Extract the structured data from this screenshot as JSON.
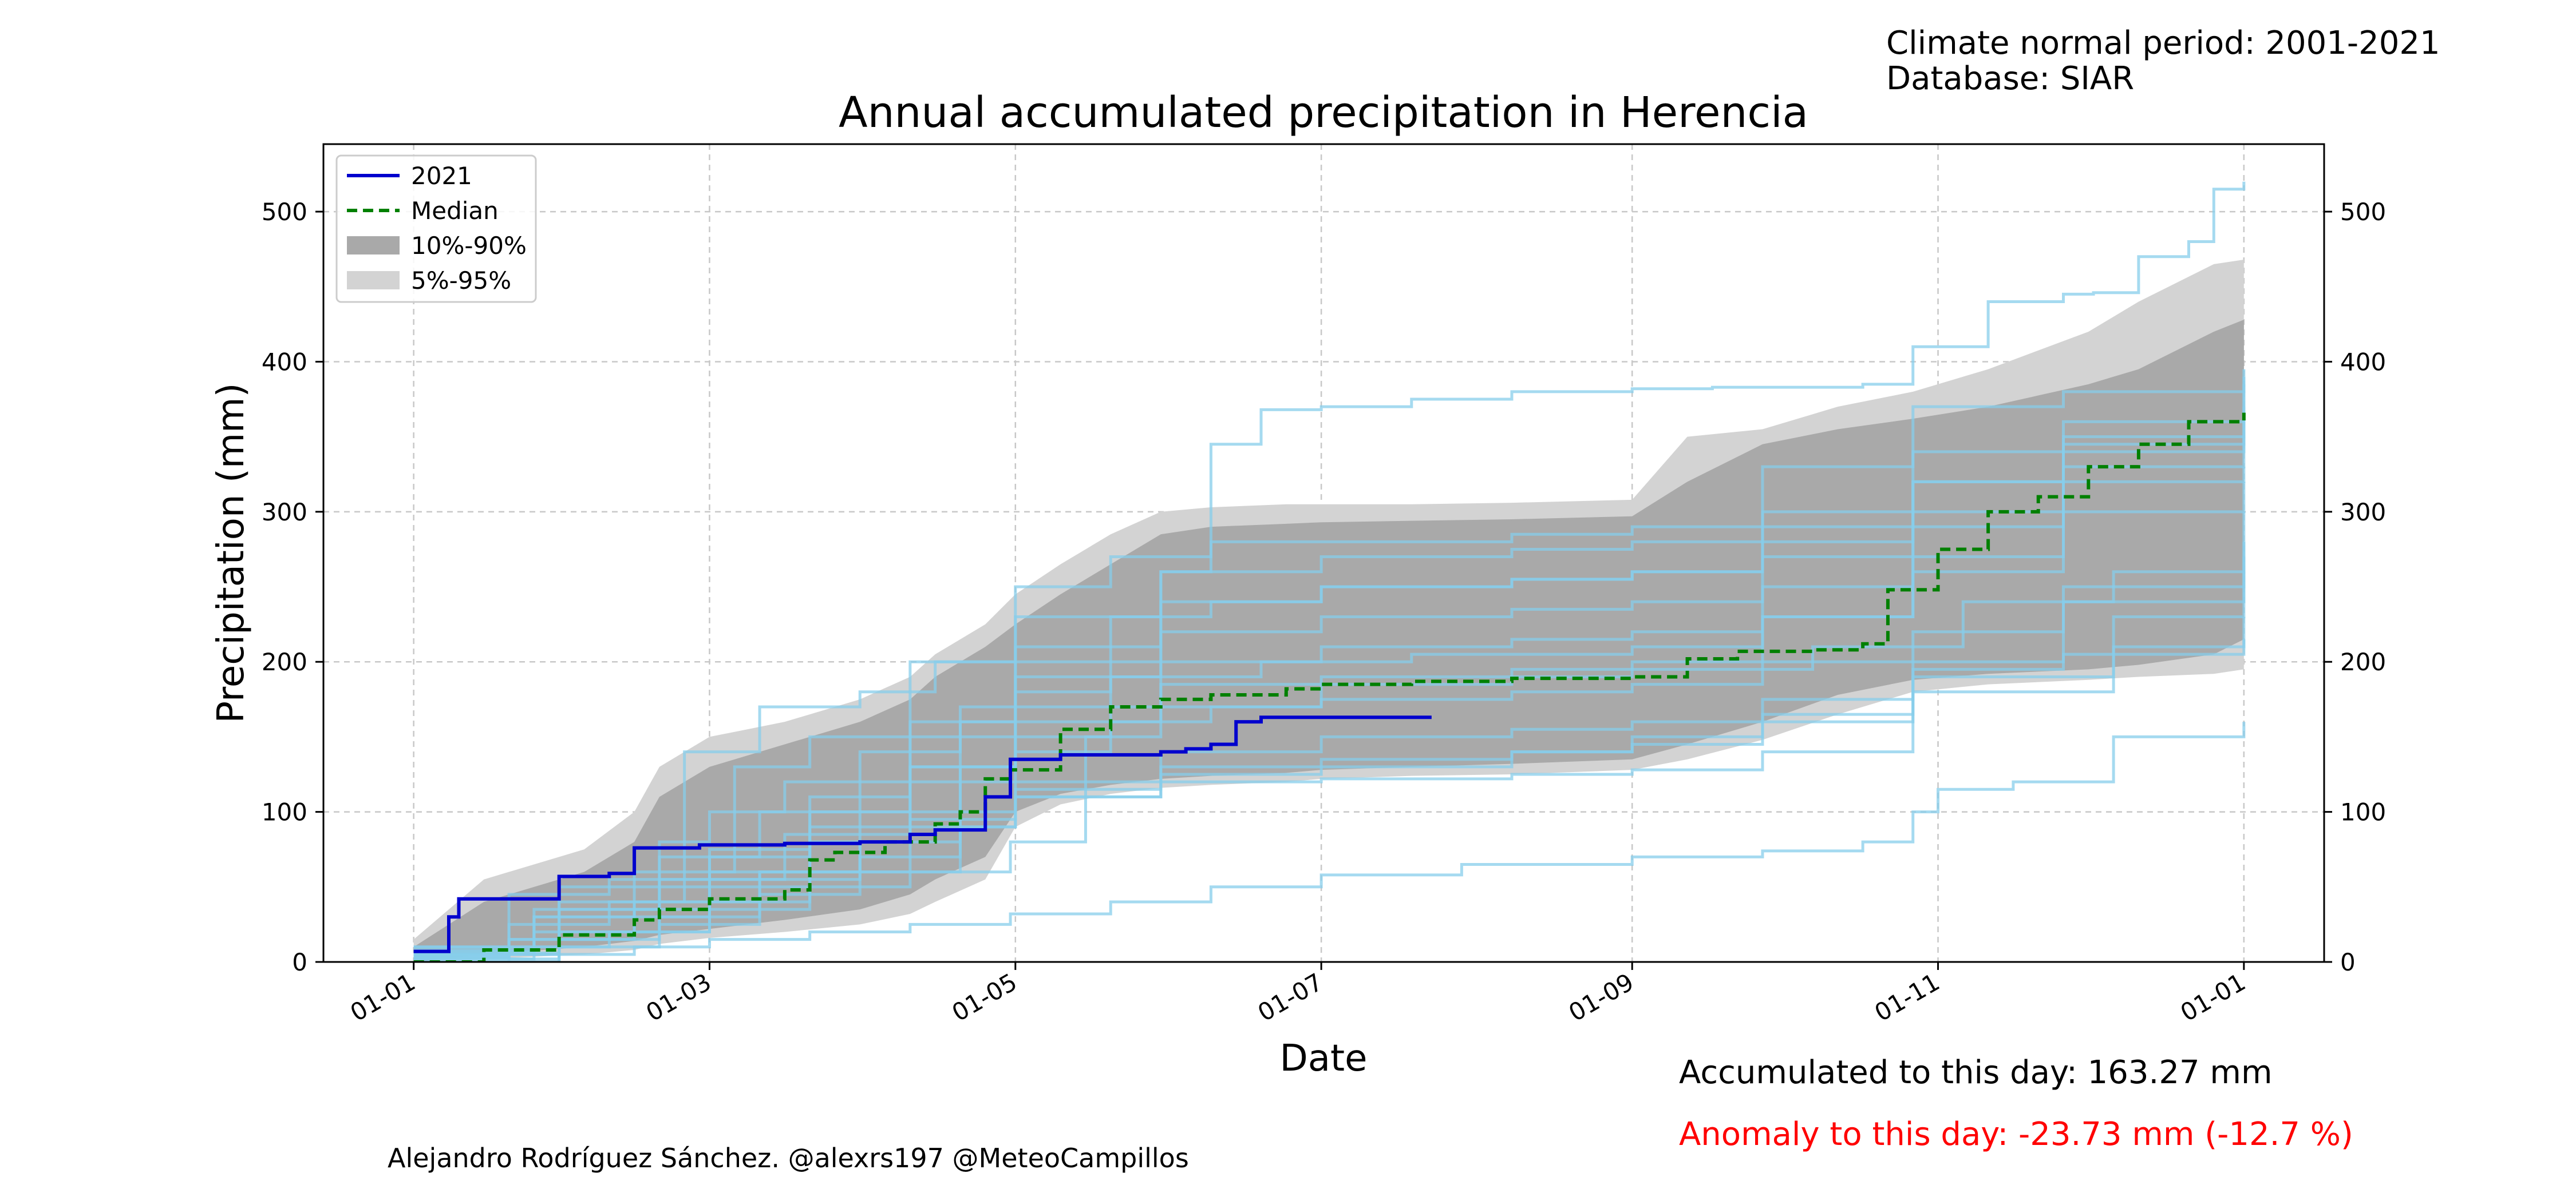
{
  "header": {
    "climate_normal": "Climate normal period: 2001-2021",
    "database": "Database: SIAR"
  },
  "footer": {
    "accumulated": "Accumulated to this day: 163.27 mm",
    "anomaly": "Anomaly to this day: -23.73 mm (-12.7 %)",
    "anomaly_color": "#ff0000",
    "credit": "Alejandro Rodríguez Sánchez. @alexrs197 @MeteoCampillos"
  },
  "chart_data": {
    "type": "line",
    "title": "Annual accumulated precipitation in Herencia",
    "xlabel": "Date",
    "ylabel": "Precipitation (mm)",
    "xlim": [
      "2021-12-23",
      "2022-01-10"
    ],
    "x_axis_note_format": "day-month",
    "xticks": [
      {
        "date": "01-01",
        "day": 1
      },
      {
        "date": "01-03",
        "day": 60
      },
      {
        "date": "01-05",
        "day": 121
      },
      {
        "date": "01-07",
        "day": 182
      },
      {
        "date": "01-09",
        "day": 244
      },
      {
        "date": "01-11",
        "day": 305
      },
      {
        "date": "01-01",
        "day": 366
      }
    ],
    "xlim_days": [
      -17,
      382
    ],
    "ylim": [
      0,
      545
    ],
    "yticks": [
      0,
      100,
      200,
      300,
      400,
      500
    ],
    "grid": true,
    "legend_position": "top-left",
    "legend": [
      {
        "label": "2021",
        "kind": "line",
        "color": "#0000cd",
        "dash": "solid"
      },
      {
        "label": "Median",
        "kind": "line",
        "color": "#008000",
        "dash": "dashed"
      },
      {
        "label": "10%-90%",
        "kind": "patch",
        "color": "#a9a9a9"
      },
      {
        "label": "5%-95%",
        "kind": "patch",
        "color": "#d3d3d3"
      }
    ],
    "colors": {
      "historical_years": "#87ceeb",
      "band_10_90": "#a9a9a9",
      "band_5_95": "#d3d3d3",
      "current_year": "#0000cd",
      "median": "#008000"
    },
    "band_5_95": {
      "x": [
        1,
        15,
        35,
        45,
        50,
        60,
        75,
        90,
        100,
        105,
        115,
        121,
        130,
        140,
        150,
        160,
        175,
        182,
        200,
        220,
        244,
        255,
        270,
        285,
        300,
        315,
        335,
        345,
        360,
        366
      ],
      "lower": [
        0,
        2,
        5,
        8,
        12,
        16,
        20,
        25,
        32,
        40,
        55,
        90,
        105,
        112,
        116,
        118,
        120,
        122,
        124,
        125,
        128,
        135,
        148,
        165,
        180,
        185,
        188,
        190,
        192,
        195
      ],
      "upper": [
        15,
        55,
        75,
        100,
        130,
        150,
        160,
        175,
        190,
        205,
        225,
        245,
        265,
        285,
        300,
        303,
        305,
        305,
        305,
        306,
        308,
        350,
        355,
        370,
        380,
        395,
        420,
        440,
        465,
        468
      ]
    },
    "band_10_90": {
      "x": [
        1,
        15,
        35,
        45,
        50,
        60,
        75,
        90,
        100,
        105,
        115,
        121,
        130,
        140,
        150,
        160,
        175,
        182,
        200,
        220,
        244,
        255,
        270,
        285,
        300,
        315,
        335,
        345,
        360,
        366
      ],
      "lower": [
        0,
        5,
        10,
        14,
        18,
        22,
        28,
        35,
        45,
        55,
        70,
        100,
        112,
        118,
        122,
        124,
        126,
        128,
        130,
        132,
        135,
        145,
        160,
        178,
        188,
        192,
        195,
        198,
        205,
        215
      ],
      "upper": [
        10,
        40,
        60,
        80,
        110,
        130,
        145,
        160,
        175,
        190,
        210,
        225,
        245,
        265,
        285,
        290,
        292,
        293,
        294,
        295,
        297,
        320,
        345,
        355,
        362,
        370,
        385,
        395,
        420,
        428
      ]
    },
    "series": [
      {
        "name": "2021",
        "x": [
          1,
          7,
          8,
          10,
          12,
          25,
          30,
          40,
          45,
          58,
          75,
          90,
          100,
          105,
          110,
          115,
          120,
          130,
          140,
          150,
          155,
          160,
          165,
          170,
          185,
          204
        ],
        "y": [
          7,
          7,
          30,
          42,
          42,
          42,
          57,
          59,
          76,
          78,
          79,
          80,
          85,
          88,
          88,
          110,
          135,
          138,
          138,
          140,
          142,
          145,
          160,
          163,
          163,
          163
        ]
      },
      {
        "name": "Median",
        "x": [
          1,
          15,
          30,
          45,
          50,
          60,
          75,
          80,
          85,
          95,
          105,
          110,
          115,
          120,
          130,
          140,
          150,
          160,
          175,
          182,
          200,
          220,
          244,
          255,
          265,
          280,
          290,
          295,
          305,
          315,
          325,
          335,
          345,
          355,
          366
        ],
        "y": [
          0,
          8,
          18,
          28,
          35,
          42,
          48,
          68,
          73,
          80,
          92,
          100,
          122,
          128,
          155,
          170,
          175,
          178,
          182,
          185,
          187,
          189,
          190,
          202,
          207,
          208,
          212,
          248,
          275,
          300,
          310,
          330,
          345,
          360,
          366
        ]
      }
    ],
    "historical_years": [
      {
        "x": [
          1,
          20,
          40,
          60,
          80,
          100,
          120,
          135,
          140,
          150,
          160,
          170,
          182,
          200,
          220,
          244,
          260,
          290,
          300,
          315,
          330,
          336,
          345,
          355,
          360,
          366
        ],
        "y": [
          5,
          15,
          20,
          35,
          50,
          60,
          80,
          150,
          200,
          260,
          345,
          368,
          370,
          375,
          380,
          382,
          383,
          385,
          410,
          440,
          445,
          446,
          470,
          480,
          515,
          520
        ]
      },
      {
        "x": [
          1,
          20,
          45,
          60,
          80,
          100,
          120,
          140,
          160,
          182,
          210,
          244,
          270,
          290,
          300,
          305,
          320,
          340,
          366
        ],
        "y": [
          0,
          5,
          10,
          15,
          20,
          25,
          32,
          40,
          50,
          58,
          65,
          70,
          74,
          80,
          100,
          115,
          120,
          150,
          160
        ]
      },
      {
        "x": [
          1,
          30,
          45,
          55,
          70,
          90,
          105,
          121,
          140,
          160,
          182,
          220,
          244,
          270,
          300,
          330,
          366
        ],
        "y": [
          10,
          50,
          60,
          140,
          170,
          180,
          200,
          250,
          270,
          280,
          280,
          285,
          290,
          330,
          370,
          380,
          385
        ]
      },
      {
        "x": [
          1,
          30,
          50,
          60,
          80,
          100,
          121,
          150,
          182,
          220,
          244,
          270,
          300,
          330,
          366
        ],
        "y": [
          2,
          20,
          30,
          50,
          80,
          95,
          110,
          125,
          130,
          140,
          150,
          165,
          195,
          205,
          215
        ]
      },
      {
        "x": [
          1,
          25,
          45,
          60,
          80,
          100,
          121,
          140,
          160,
          182,
          220,
          244,
          270,
          300,
          330,
          366
        ],
        "y": [
          5,
          30,
          50,
          70,
          110,
          150,
          200,
          230,
          240,
          250,
          255,
          260,
          290,
          320,
          340,
          360
        ]
      },
      {
        "x": [
          1,
          20,
          45,
          60,
          80,
          100,
          121,
          140,
          160,
          182,
          220,
          244,
          270,
          300,
          330,
          366
        ],
        "y": [
          3,
          15,
          35,
          60,
          90,
          120,
          140,
          160,
          170,
          175,
          180,
          185,
          200,
          220,
          250,
          280
        ]
      },
      {
        "x": [
          1,
          30,
          50,
          70,
          90,
          110,
          121,
          150,
          182,
          220,
          244,
          280,
          310,
          340,
          366
        ],
        "y": [
          0,
          10,
          25,
          45,
          80,
          130,
          150,
          170,
          185,
          190,
          195,
          210,
          240,
          260,
          300
        ]
      },
      {
        "x": [
          1,
          25,
          50,
          60,
          75,
          100,
          121,
          140,
          170,
          200,
          244,
          270,
          300,
          330,
          366
        ],
        "y": [
          8,
          35,
          80,
          100,
          120,
          160,
          180,
          190,
          200,
          205,
          210,
          230,
          270,
          330,
          390
        ]
      },
      {
        "x": [
          1,
          20,
          40,
          60,
          90,
          110,
          121,
          150,
          182,
          220,
          244,
          270,
          300,
          340,
          366
        ],
        "y": [
          4,
          25,
          40,
          55,
          70,
          100,
          115,
          130,
          135,
          140,
          145,
          160,
          190,
          210,
          230
        ]
      },
      {
        "x": [
          1,
          30,
          55,
          65,
          80,
          100,
          121,
          150,
          182,
          220,
          244,
          270,
          300,
          330,
          366
        ],
        "y": [
          6,
          40,
          60,
          130,
          150,
          200,
          230,
          260,
          270,
          275,
          280,
          300,
          340,
          360,
          370
        ]
      },
      {
        "x": [
          1,
          25,
          45,
          70,
          90,
          110,
          121,
          150,
          182,
          220,
          244,
          270,
          300,
          330,
          366
        ],
        "y": [
          2,
          20,
          40,
          60,
          100,
          160,
          210,
          240,
          250,
          255,
          260,
          280,
          320,
          345,
          350
        ]
      },
      {
        "x": [
          1,
          20,
          40,
          60,
          80,
          110,
          121,
          150,
          182,
          220,
          244,
          270,
          300,
          340,
          366
        ],
        "y": [
          3,
          10,
          20,
          40,
          60,
          90,
          110,
          120,
          122,
          125,
          128,
          140,
          180,
          230,
          260
        ]
      },
      {
        "x": [
          1,
          30,
          50,
          70,
          90,
          110,
          121,
          150,
          182,
          220,
          244,
          270,
          300,
          330,
          366
        ],
        "y": [
          5,
          35,
          70,
          100,
          140,
          170,
          190,
          220,
          230,
          235,
          240,
          270,
          300,
          320,
          330
        ]
      },
      {
        "x": [
          1,
          25,
          50,
          75,
          100,
          121,
          150,
          182,
          220,
          244,
          270,
          300,
          330,
          366
        ],
        "y": [
          7,
          30,
          55,
          85,
          130,
          160,
          185,
          190,
          195,
          200,
          230,
          260,
          300,
          320
        ]
      },
      {
        "x": [
          1,
          20,
          40,
          60,
          80,
          100,
          121,
          150,
          182,
          220,
          244,
          270,
          300,
          330,
          366
        ],
        "y": [
          10,
          45,
          55,
          75,
          100,
          130,
          170,
          200,
          210,
          215,
          220,
          250,
          290,
          350,
          395
        ]
      },
      {
        "x": [
          1,
          30,
          50,
          70,
          100,
          121,
          150,
          182,
          220,
          244,
          270,
          300,
          330,
          366
        ],
        "y": [
          0,
          15,
          30,
          60,
          90,
          120,
          140,
          150,
          155,
          160,
          175,
          200,
          240,
          270
        ]
      }
    ]
  }
}
